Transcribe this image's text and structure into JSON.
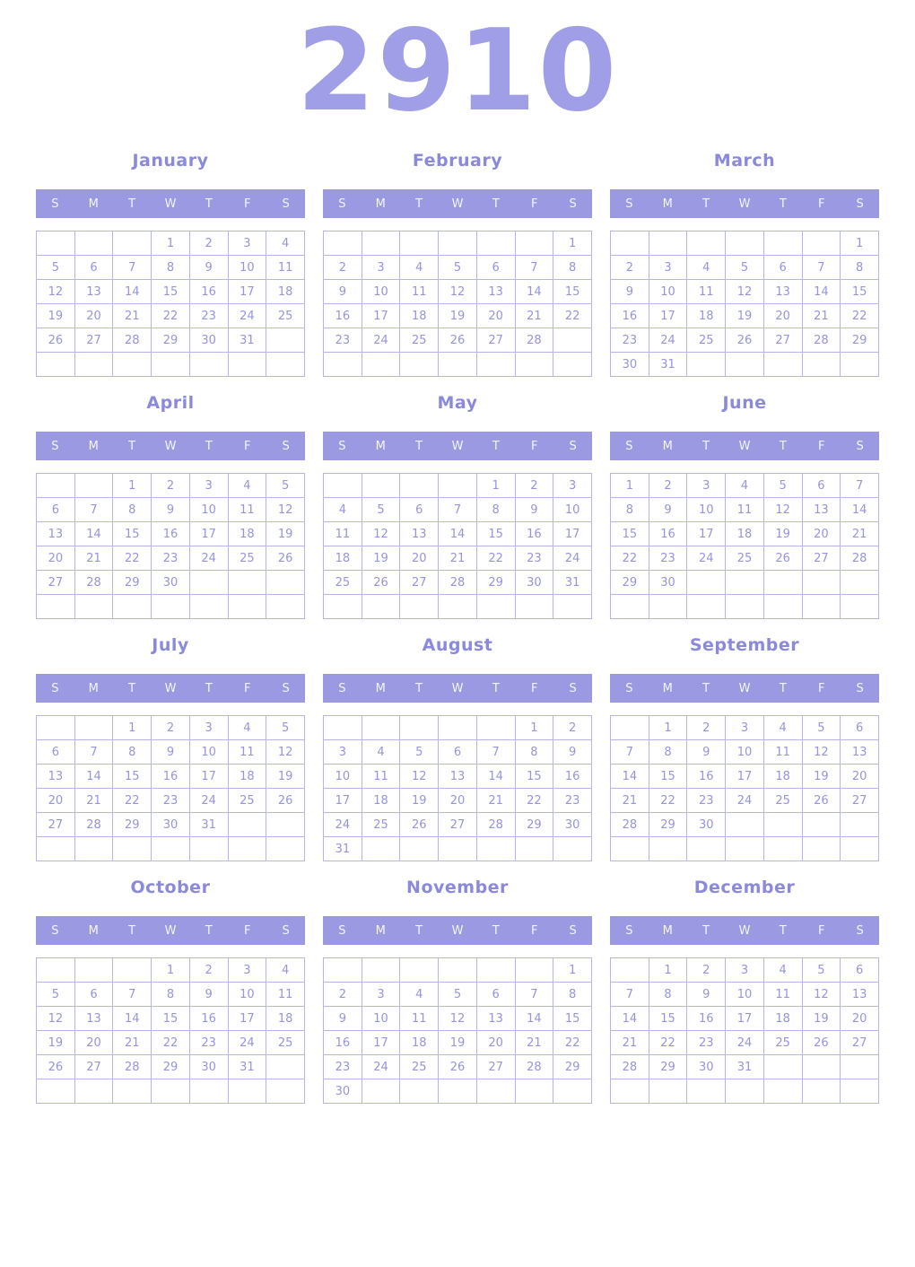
{
  "title": "2910",
  "weekdays": [
    "S",
    "M",
    "T",
    "W",
    "T",
    "F",
    "S"
  ],
  "colors": {
    "background": "#ffffff",
    "title": "#9f9ee6",
    "month_title": "#8b89dc",
    "header_bg": "#9a99e2",
    "header_text": "#f4f4fc",
    "grid_border": "#b7b5e8",
    "date_text": "#9694dc"
  },
  "months": [
    {
      "name": "January",
      "weeks": [
        [
          "",
          "",
          "",
          "1",
          "2",
          "3",
          "4"
        ],
        [
          "5",
          "6",
          "7",
          "8",
          "9",
          "10",
          "11"
        ],
        [
          "12",
          "13",
          "14",
          "15",
          "16",
          "17",
          "18"
        ],
        [
          "19",
          "20",
          "21",
          "22",
          "23",
          "24",
          "25"
        ],
        [
          "26",
          "27",
          "28",
          "29",
          "30",
          "31",
          ""
        ],
        [
          "",
          "",
          "",
          "",
          "",
          "",
          ""
        ]
      ]
    },
    {
      "name": "February",
      "weeks": [
        [
          "",
          "",
          "",
          "",
          "",
          "",
          "1"
        ],
        [
          "2",
          "3",
          "4",
          "5",
          "6",
          "7",
          "8"
        ],
        [
          "9",
          "10",
          "11",
          "12",
          "13",
          "14",
          "15"
        ],
        [
          "16",
          "17",
          "18",
          "19",
          "20",
          "21",
          "22"
        ],
        [
          "23",
          "24",
          "25",
          "26",
          "27",
          "28",
          ""
        ],
        [
          "",
          "",
          "",
          "",
          "",
          "",
          ""
        ]
      ]
    },
    {
      "name": "March",
      "weeks": [
        [
          "",
          "",
          "",
          "",
          "",
          "",
          "1"
        ],
        [
          "2",
          "3",
          "4",
          "5",
          "6",
          "7",
          "8"
        ],
        [
          "9",
          "10",
          "11",
          "12",
          "13",
          "14",
          "15"
        ],
        [
          "16",
          "17",
          "18",
          "19",
          "20",
          "21",
          "22"
        ],
        [
          "23",
          "24",
          "25",
          "26",
          "27",
          "28",
          "29"
        ],
        [
          "30",
          "31",
          "",
          "",
          "",
          "",
          ""
        ]
      ]
    },
    {
      "name": "April",
      "weeks": [
        [
          "",
          "",
          "1",
          "2",
          "3",
          "4",
          "5"
        ],
        [
          "6",
          "7",
          "8",
          "9",
          "10",
          "11",
          "12"
        ],
        [
          "13",
          "14",
          "15",
          "16",
          "17",
          "18",
          "19"
        ],
        [
          "20",
          "21",
          "22",
          "23",
          "24",
          "25",
          "26"
        ],
        [
          "27",
          "28",
          "29",
          "30",
          "",
          "",
          ""
        ],
        [
          "",
          "",
          "",
          "",
          "",
          "",
          ""
        ]
      ]
    },
    {
      "name": "May",
      "weeks": [
        [
          "",
          "",
          "",
          "",
          "1",
          "2",
          "3"
        ],
        [
          "4",
          "5",
          "6",
          "7",
          "8",
          "9",
          "10"
        ],
        [
          "11",
          "12",
          "13",
          "14",
          "15",
          "16",
          "17"
        ],
        [
          "18",
          "19",
          "20",
          "21",
          "22",
          "23",
          "24"
        ],
        [
          "25",
          "26",
          "27",
          "28",
          "29",
          "30",
          "31"
        ],
        [
          "",
          "",
          "",
          "",
          "",
          "",
          ""
        ]
      ]
    },
    {
      "name": "June",
      "weeks": [
        [
          "1",
          "2",
          "3",
          "4",
          "5",
          "6",
          "7"
        ],
        [
          "8",
          "9",
          "10",
          "11",
          "12",
          "13",
          "14"
        ],
        [
          "15",
          "16",
          "17",
          "18",
          "19",
          "20",
          "21"
        ],
        [
          "22",
          "23",
          "24",
          "25",
          "26",
          "27",
          "28"
        ],
        [
          "29",
          "30",
          "",
          "",
          "",
          "",
          ""
        ],
        [
          "",
          "",
          "",
          "",
          "",
          "",
          ""
        ]
      ]
    },
    {
      "name": "July",
      "weeks": [
        [
          "",
          "",
          "1",
          "2",
          "3",
          "4",
          "5"
        ],
        [
          "6",
          "7",
          "8",
          "9",
          "10",
          "11",
          "12"
        ],
        [
          "13",
          "14",
          "15",
          "16",
          "17",
          "18",
          "19"
        ],
        [
          "20",
          "21",
          "22",
          "23",
          "24",
          "25",
          "26"
        ],
        [
          "27",
          "28",
          "29",
          "30",
          "31",
          "",
          ""
        ],
        [
          "",
          "",
          "",
          "",
          "",
          "",
          ""
        ]
      ]
    },
    {
      "name": "August",
      "weeks": [
        [
          "",
          "",
          "",
          "",
          "",
          "1",
          "2"
        ],
        [
          "3",
          "4",
          "5",
          "6",
          "7",
          "8",
          "9"
        ],
        [
          "10",
          "11",
          "12",
          "13",
          "14",
          "15",
          "16"
        ],
        [
          "17",
          "18",
          "19",
          "20",
          "21",
          "22",
          "23"
        ],
        [
          "24",
          "25",
          "26",
          "27",
          "28",
          "29",
          "30"
        ],
        [
          "31",
          "",
          "",
          "",
          "",
          "",
          ""
        ]
      ]
    },
    {
      "name": "September",
      "weeks": [
        [
          "",
          "1",
          "2",
          "3",
          "4",
          "5",
          "6"
        ],
        [
          "7",
          "8",
          "9",
          "10",
          "11",
          "12",
          "13"
        ],
        [
          "14",
          "15",
          "16",
          "17",
          "18",
          "19",
          "20"
        ],
        [
          "21",
          "22",
          "23",
          "24",
          "25",
          "26",
          "27"
        ],
        [
          "28",
          "29",
          "30",
          "",
          "",
          "",
          ""
        ],
        [
          "",
          "",
          "",
          "",
          "",
          "",
          ""
        ]
      ]
    },
    {
      "name": "October",
      "weeks": [
        [
          "",
          "",
          "",
          "1",
          "2",
          "3",
          "4"
        ],
        [
          "5",
          "6",
          "7",
          "8",
          "9",
          "10",
          "11"
        ],
        [
          "12",
          "13",
          "14",
          "15",
          "16",
          "17",
          "18"
        ],
        [
          "19",
          "20",
          "21",
          "22",
          "23",
          "24",
          "25"
        ],
        [
          "26",
          "27",
          "28",
          "29",
          "30",
          "31",
          ""
        ],
        [
          "",
          "",
          "",
          "",
          "",
          "",
          ""
        ]
      ]
    },
    {
      "name": "November",
      "weeks": [
        [
          "",
          "",
          "",
          "",
          "",
          "",
          "1"
        ],
        [
          "2",
          "3",
          "4",
          "5",
          "6",
          "7",
          "8"
        ],
        [
          "9",
          "10",
          "11",
          "12",
          "13",
          "14",
          "15"
        ],
        [
          "16",
          "17",
          "18",
          "19",
          "20",
          "21",
          "22"
        ],
        [
          "23",
          "24",
          "25",
          "26",
          "27",
          "28",
          "29"
        ],
        [
          "30",
          "",
          "",
          "",
          "",
          "",
          ""
        ]
      ]
    },
    {
      "name": "December",
      "weeks": [
        [
          "",
          "1",
          "2",
          "3",
          "4",
          "5",
          "6"
        ],
        [
          "7",
          "8",
          "9",
          "10",
          "11",
          "12",
          "13"
        ],
        [
          "14",
          "15",
          "16",
          "17",
          "18",
          "19",
          "20"
        ],
        [
          "21",
          "22",
          "23",
          "24",
          "25",
          "26",
          "27"
        ],
        [
          "28",
          "29",
          "30",
          "31",
          "",
          "",
          ""
        ],
        [
          "",
          "",
          "",
          "",
          "",
          "",
          ""
        ]
      ]
    }
  ]
}
